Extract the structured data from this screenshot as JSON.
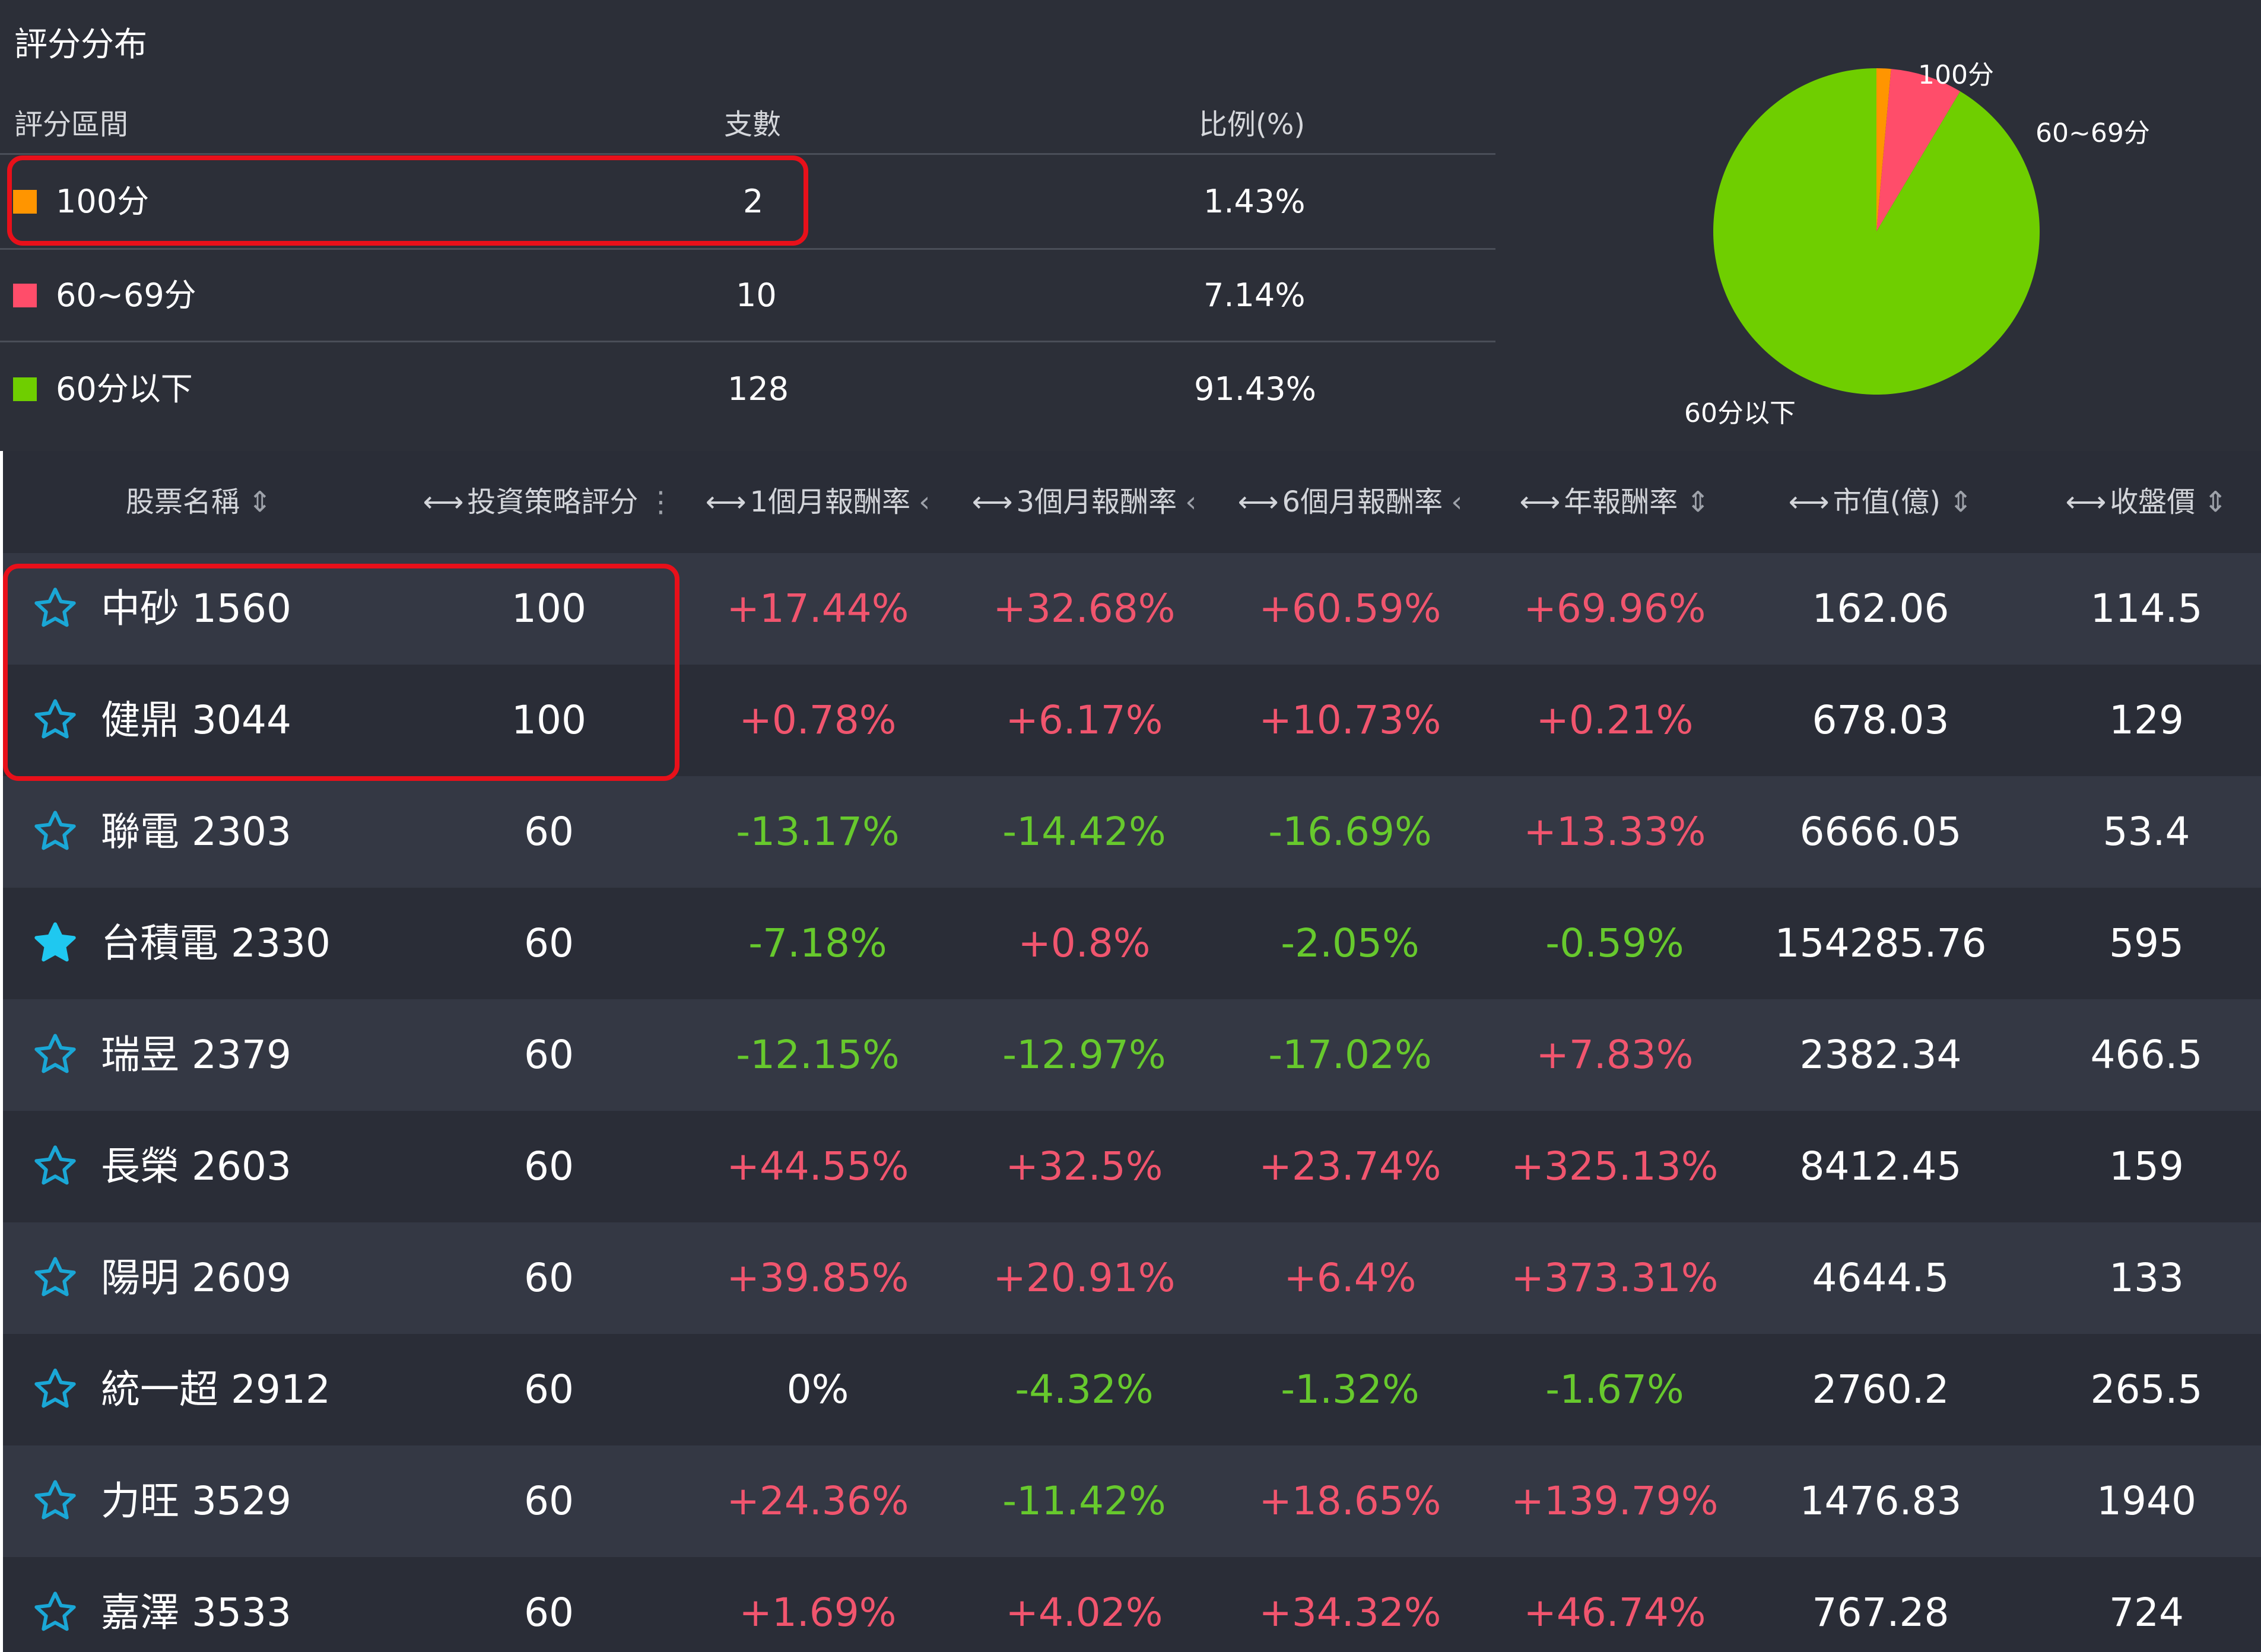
{
  "distribution": {
    "title": "評分分布",
    "headers": {
      "range": "評分區間",
      "count": "支數",
      "ratio": "比例(%)"
    },
    "rows": [
      {
        "label": "100分",
        "count": "2",
        "ratio": "1.43%",
        "color": "#ff9500"
      },
      {
        "label": "60~69分",
        "count": "10",
        "ratio": "7.14%",
        "color": "#ff4d6a"
      },
      {
        "label": "60分以下",
        "count": "128",
        "ratio": "91.43%",
        "color": "#6fce00"
      }
    ]
  },
  "chart_data": {
    "type": "pie",
    "categories": [
      "100分",
      "60~69分",
      "60分以下"
    ],
    "values": [
      1.43,
      7.14,
      91.43
    ],
    "colors": [
      "#ff9500",
      "#ff4d6a",
      "#6fce00"
    ]
  },
  "table": {
    "columns": [
      {
        "label": "股票名稱",
        "arrow": "",
        "sort": "⇕"
      },
      {
        "label": "投資策略評分",
        "arrow": "⟷",
        "sort": "⋮"
      },
      {
        "label": "1個月報酬率",
        "arrow": "⟷",
        "sort": "‹"
      },
      {
        "label": "3個月報酬率",
        "arrow": "⟷",
        "sort": "‹"
      },
      {
        "label": "6個月報酬率",
        "arrow": "⟷",
        "sort": "‹"
      },
      {
        "label": "年報酬率",
        "arrow": "⟷",
        "sort": "⇕"
      },
      {
        "label": "市值(億)",
        "arrow": "⟷",
        "sort": "⇕"
      },
      {
        "label": "收盤價",
        "arrow": "⟷",
        "sort": "⇕"
      }
    ],
    "rows": [
      {
        "name": "中砂 1560",
        "score": "100",
        "m1": "+17.44%",
        "m3": "+32.68%",
        "m6": "+60.59%",
        "y1": "+69.96%",
        "cap": "162.06",
        "close": "114.5",
        "fav": false
      },
      {
        "name": "健鼎 3044",
        "score": "100",
        "m1": "+0.78%",
        "m3": "+6.17%",
        "m6": "+10.73%",
        "y1": "+0.21%",
        "cap": "678.03",
        "close": "129",
        "fav": false
      },
      {
        "name": "聯電 2303",
        "score": "60",
        "m1": "-13.17%",
        "m3": "-14.42%",
        "m6": "-16.69%",
        "y1": "+13.33%",
        "cap": "6666.05",
        "close": "53.4",
        "fav": false
      },
      {
        "name": "台積電 2330",
        "score": "60",
        "m1": "-7.18%",
        "m3": "+0.8%",
        "m6": "-2.05%",
        "y1": "-0.59%",
        "cap": "154285.76",
        "close": "595",
        "fav": true
      },
      {
        "name": "瑞昱 2379",
        "score": "60",
        "m1": "-12.15%",
        "m3": "-12.97%",
        "m6": "-17.02%",
        "y1": "+7.83%",
        "cap": "2382.34",
        "close": "466.5",
        "fav": false
      },
      {
        "name": "長榮 2603",
        "score": "60",
        "m1": "+44.55%",
        "m3": "+32.5%",
        "m6": "+23.74%",
        "y1": "+325.13%",
        "cap": "8412.45",
        "close": "159",
        "fav": false
      },
      {
        "name": "陽明 2609",
        "score": "60",
        "m1": "+39.85%",
        "m3": "+20.91%",
        "m6": "+6.4%",
        "y1": "+373.31%",
        "cap": "4644.5",
        "close": "133",
        "fav": false
      },
      {
        "name": "統一超 2912",
        "score": "60",
        "m1": "0%",
        "m3": "-4.32%",
        "m6": "-1.32%",
        "y1": "-1.67%",
        "cap": "2760.2",
        "close": "265.5",
        "fav": false
      },
      {
        "name": "力旺 3529",
        "score": "60",
        "m1": "+24.36%",
        "m3": "-11.42%",
        "m6": "+18.65%",
        "y1": "+139.79%",
        "cap": "1476.83",
        "close": "1940",
        "fav": false
      },
      {
        "name": "嘉澤 3533",
        "score": "60",
        "m1": "+1.69%",
        "m3": "+4.02%",
        "m6": "+34.32%",
        "y1": "+46.74%",
        "cap": "767.28",
        "close": "724",
        "fav": false
      }
    ]
  }
}
